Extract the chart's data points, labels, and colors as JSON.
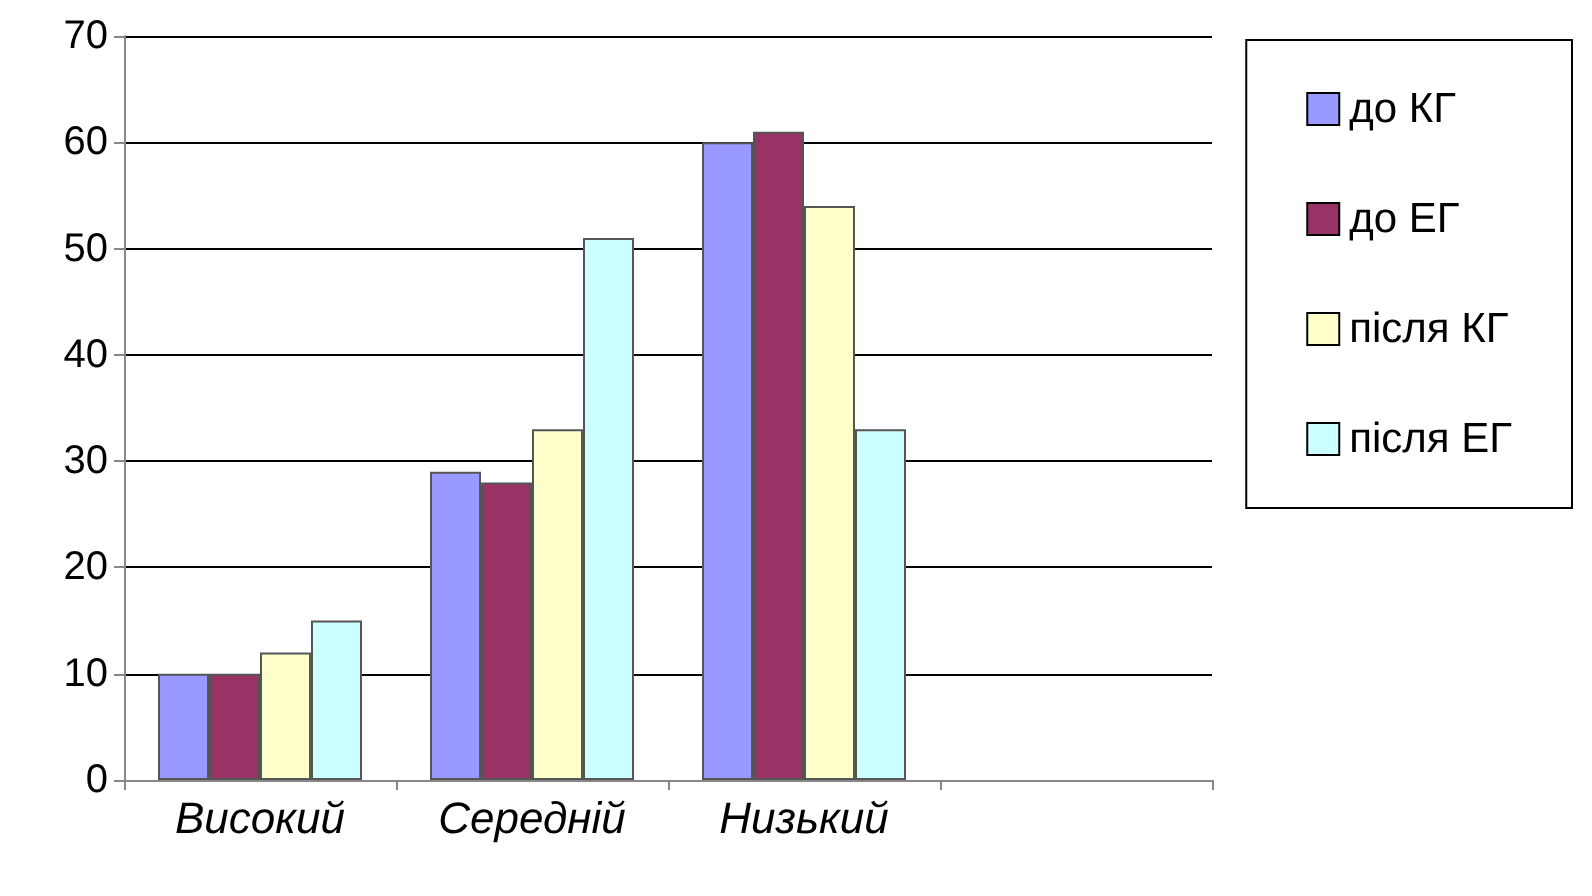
{
  "chart_data": {
    "type": "bar",
    "categories": [
      "Високий",
      "Середній",
      "Низький",
      null
    ],
    "series": [
      {
        "name": "до КГ",
        "color": "#9999ff",
        "values": [
          10,
          29,
          60,
          null
        ]
      },
      {
        "name": "до ЕГ",
        "color": "#993366",
        "values": [
          10,
          28,
          61,
          null
        ]
      },
      {
        "name": "після КГ",
        "color": "#ffffcc",
        "values": [
          12,
          33,
          54,
          null
        ]
      },
      {
        "name": "після ЕГ",
        "color": "#ccffff",
        "values": [
          15,
          51,
          33,
          null
        ]
      }
    ],
    "ylim": [
      0,
      70
    ],
    "yticks": [
      0,
      10,
      20,
      30,
      40,
      50,
      60,
      70
    ],
    "grid": "y",
    "legend": "right"
  }
}
